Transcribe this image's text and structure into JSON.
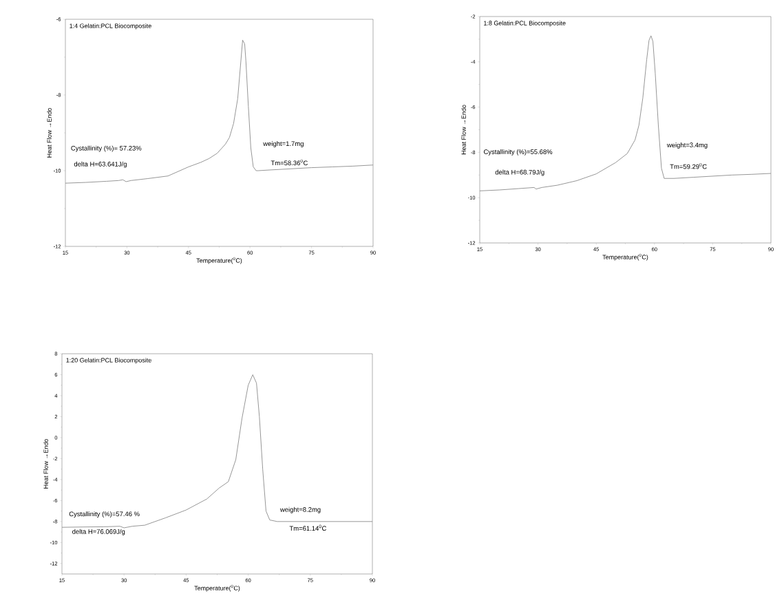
{
  "chart_data": [
    {
      "type": "line",
      "title": "1:4  Gelatin:PCL  Biocomposite",
      "xlabel": "Temperature($^{0}$C)",
      "ylabel": "Heat Flow →Endo",
      "color": "#8a8a8a",
      "xlim": [
        15,
        90
      ],
      "ylim": [
        -12,
        -6
      ],
      "xticks": [
        15,
        30,
        45,
        60,
        75,
        90
      ],
      "yticks": [
        -12,
        -10,
        -8,
        -6
      ],
      "x": [
        15,
        20,
        25,
        28,
        29,
        29.8,
        31,
        35,
        40,
        45,
        48,
        50,
        52,
        54,
        55,
        56,
        57,
        57.7,
        58.2,
        58.7,
        59,
        59.6,
        60.2,
        60.8,
        61.5,
        62,
        65,
        70,
        75,
        80,
        85,
        90
      ],
      "values": [
        -10.33,
        -10.31,
        -10.28,
        -10.26,
        -10.24,
        -10.29,
        -10.26,
        -10.21,
        -10.14,
        -9.9,
        -9.78,
        -9.68,
        -9.54,
        -9.3,
        -9.12,
        -8.75,
        -8.1,
        -7.2,
        -6.55,
        -6.65,
        -7.1,
        -8.3,
        -9.4,
        -9.9,
        -10.0,
        -10.0,
        -9.98,
        -9.95,
        -9.92,
        -9.9,
        -9.88,
        -9.85
      ],
      "annotations": [
        "Cystallinity (%)= 57.23%",
        "delta H=63.641J/g",
        "weight=1.7mg",
        "Tm=58.36$^{0}$C"
      ]
    },
    {
      "type": "line",
      "title": "1:8 Gelatin:PCL  Biocomposite",
      "xlabel": "Temperature($^{0}$C)",
      "ylabel": "Heat Flow →Endo",
      "color": "#8a8a8a",
      "xlim": [
        15,
        90
      ],
      "ylim": [
        -12,
        -2
      ],
      "xticks": [
        15,
        30,
        45,
        60,
        75,
        90
      ],
      "yticks": [
        -12,
        -10,
        -8,
        -6,
        -4,
        -2
      ],
      "x": [
        15,
        20,
        25,
        29,
        29.5,
        31,
        35,
        40,
        45,
        50,
        53,
        55,
        56,
        57,
        58,
        58.6,
        59.1,
        59.6,
        60.2,
        61,
        61.8,
        62.5,
        65,
        70,
        75,
        80,
        85,
        90
      ],
      "values": [
        -9.7,
        -9.66,
        -9.6,
        -9.55,
        -9.62,
        -9.55,
        -9.45,
        -9.25,
        -8.95,
        -8.45,
        -8.05,
        -7.45,
        -6.8,
        -5.6,
        -3.9,
        -3.05,
        -2.85,
        -3.1,
        -4.5,
        -6.8,
        -8.7,
        -9.15,
        -9.15,
        -9.1,
        -9.05,
        -9.0,
        -8.97,
        -8.93
      ],
      "annotations": [
        "Cystallinity (%)=55.68%",
        "delta H=68.79J/g",
        "weight=3.4mg",
        "Tm=59.29$^{0}$C"
      ]
    },
    {
      "type": "line",
      "title": "1:20   Gelatin:PCL  Biocomposite",
      "xlabel": "Temperature($^{0}$C)",
      "ylabel": "Heat Flow →Endo",
      "color": "#8a8a8a",
      "xlim": [
        15,
        90
      ],
      "ylim": [
        -13,
        8
      ],
      "xticks": [
        15,
        30,
        45,
        60,
        75,
        90
      ],
      "yticks": [
        -12,
        -10,
        -8,
        -6,
        -4,
        -2,
        0,
        2,
        4,
        6,
        8
      ],
      "x": [
        15,
        20,
        25,
        29,
        30,
        32,
        35,
        40,
        45,
        50,
        53,
        55.2,
        57,
        58.5,
        60,
        61.1,
        62,
        62.7,
        63.5,
        64.3,
        65.2,
        67,
        75,
        80,
        90
      ],
      "values": [
        -8.55,
        -8.52,
        -8.5,
        -8.45,
        -8.6,
        -8.45,
        -8.35,
        -7.65,
        -6.9,
        -5.85,
        -4.8,
        -4.2,
        -2.1,
        1.85,
        5.0,
        6.0,
        5.2,
        2.0,
        -3.0,
        -7.0,
        -7.85,
        -8.0,
        -8.0,
        -8.0,
        -8.0
      ],
      "annotations": [
        "Cystallinity (%)=57.46 %",
        "delta H=76.069J/g",
        "weight=8.2mg",
        "Tm=61.14$^{0}$C"
      ]
    }
  ]
}
